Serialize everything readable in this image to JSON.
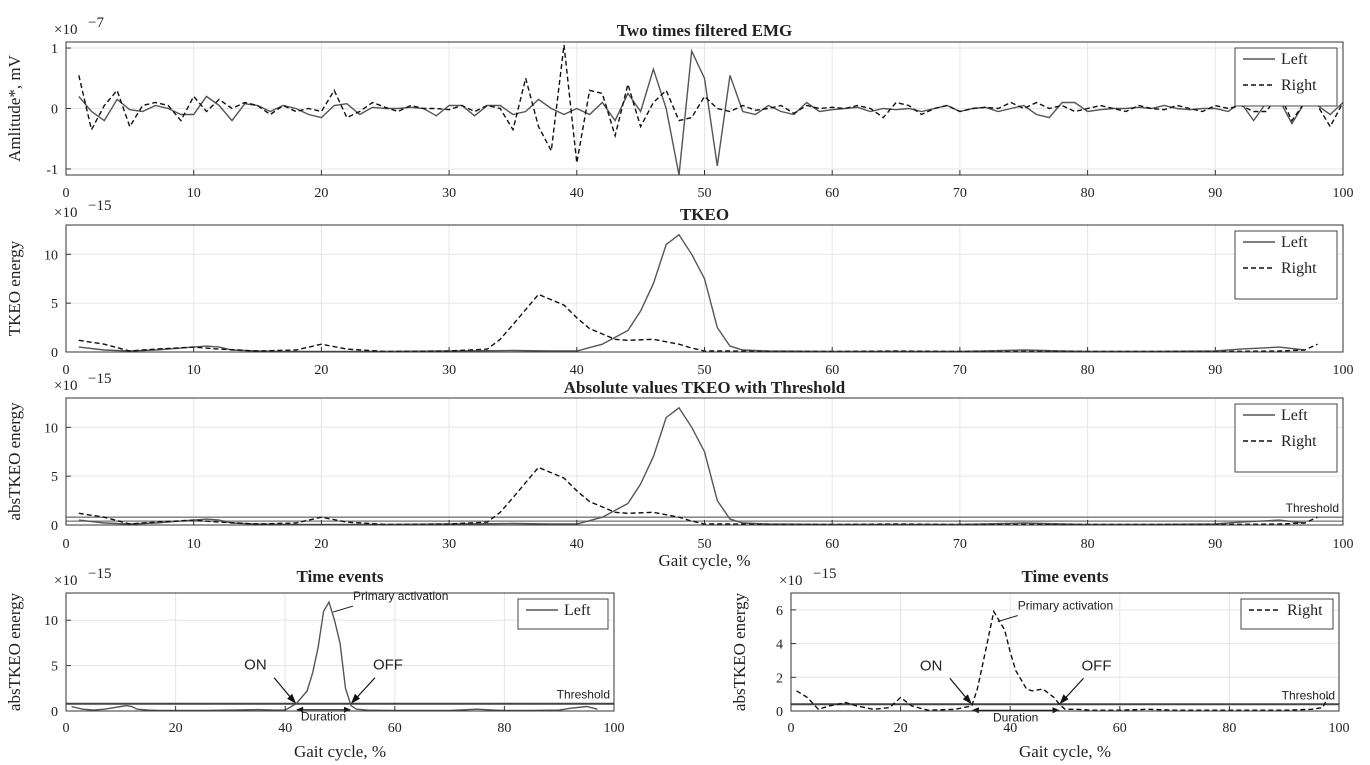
{
  "chart_data": [
    {
      "type": "line",
      "title": "Two times filtered EMG",
      "ylabel": "Amlitude*, mV",
      "xlabel": "",
      "multiplier": "×10",
      "exponent": "−7",
      "xlim": [
        0,
        100
      ],
      "ylim": [
        -1.1,
        1.1
      ],
      "xticks": [
        0,
        10,
        20,
        30,
        40,
        50,
        60,
        70,
        80,
        90,
        100
      ],
      "yticks": [
        -1,
        0,
        1
      ],
      "grid": true,
      "legend_position": "top-right",
      "x": [
        1,
        2,
        3,
        4,
        5,
        6,
        7,
        8,
        9,
        10,
        11,
        12,
        13,
        14,
        15,
        16,
        17,
        18,
        19,
        20,
        21,
        22,
        23,
        24,
        25,
        26,
        27,
        28,
        29,
        30,
        31,
        32,
        33,
        34,
        35,
        36,
        37,
        38,
        39,
        40,
        41,
        42,
        43,
        44,
        45,
        46,
        47,
        48,
        49,
        50,
        51,
        52,
        53,
        54,
        55,
        56,
        57,
        58,
        59,
        60,
        61,
        62,
        63,
        64,
        65,
        66,
        67,
        68,
        69,
        70,
        71,
        72,
        73,
        74,
        75,
        76,
        77,
        78,
        79,
        80,
        81,
        82,
        83,
        84,
        85,
        86,
        87,
        88,
        89,
        90,
        91,
        92,
        93,
        94,
        95,
        96,
        97,
        98,
        99,
        100
      ],
      "series": [
        {
          "name": "Left",
          "style": "solid",
          "values": [
            0.2,
            -0.05,
            -0.2,
            0.15,
            -0.02,
            -0.05,
            0.05,
            0.0,
            -0.1,
            -0.1,
            0.2,
            0.05,
            -0.2,
            0.08,
            0.05,
            -0.05,
            0.05,
            0.0,
            -0.1,
            -0.15,
            0.05,
            0.08,
            -0.1,
            0.02,
            0.0,
            0.0,
            0.02,
            0.0,
            -0.12,
            0.05,
            0.05,
            -0.12,
            0.05,
            0.05,
            -0.1,
            -0.05,
            0.15,
            0.0,
            -0.1,
            0.0,
            -0.1,
            0.1,
            -0.2,
            0.25,
            -0.05,
            0.65,
            0.0,
            -1.1,
            0.95,
            0.5,
            -0.95,
            0.55,
            -0.05,
            -0.1,
            0.05,
            -0.05,
            -0.1,
            0.1,
            -0.05,
            -0.02,
            0.0,
            0.02,
            -0.05,
            0.0,
            -0.02,
            0.0,
            -0.05,
            0.0,
            0.05,
            -0.05,
            0.0,
            0.02,
            -0.05,
            0.0,
            0.05,
            -0.1,
            -0.15,
            0.1,
            0.1,
            -0.05,
            -0.02,
            0.0,
            0.0,
            0.02,
            0.0,
            0.05,
            0.0,
            -0.02,
            0.0,
            0.0,
            -0.05,
            0.1,
            -0.2,
            0.1,
            0.15,
            -0.25,
            0.1,
            0.05,
            -0.1,
            0.1
          ]
        },
        {
          "name": "Right",
          "style": "dashed",
          "values": [
            0.55,
            -0.35,
            0.05,
            0.3,
            -0.3,
            0.05,
            0.1,
            0.05,
            -0.2,
            0.2,
            -0.05,
            0.15,
            0.0,
            0.1,
            0.05,
            -0.1,
            0.05,
            -0.05,
            0.0,
            -0.05,
            0.3,
            -0.15,
            -0.05,
            0.1,
            0.02,
            -0.05,
            0.05,
            0.0,
            0.0,
            -0.02,
            0.05,
            -0.05,
            0.05,
            0.0,
            -0.35,
            0.5,
            -0.3,
            -0.7,
            1.05,
            -0.9,
            0.3,
            0.25,
            -0.45,
            0.4,
            -0.3,
            0.1,
            0.3,
            -0.2,
            -0.15,
            0.2,
            0.0,
            -0.05,
            0.05,
            -0.03,
            0.0,
            0.05,
            -0.08,
            0.05,
            0.0,
            0.02,
            0.0,
            0.05,
            0.0,
            -0.15,
            0.1,
            0.05,
            -0.1,
            0.0,
            0.05,
            -0.05,
            0.0,
            0.02,
            0.0,
            0.1,
            0.0,
            0.1,
            0.0,
            0.05,
            -0.05,
            0.0,
            0.05,
            0.0,
            -0.05,
            0.05,
            0.0,
            -0.02,
            0.05,
            0.0,
            -0.05,
            0.05,
            0.0,
            0.05,
            -0.05,
            -0.05,
            0.25,
            -0.2,
            0.1,
            0.05,
            -0.3,
            0.1
          ]
        }
      ]
    },
    {
      "type": "line",
      "title": "TKEO",
      "ylabel": "TKEO energy",
      "xlabel": "",
      "multiplier": "×10",
      "exponent": "−15",
      "xlim": [
        0,
        100
      ],
      "ylim": [
        0,
        13
      ],
      "xticks": [
        0,
        10,
        20,
        30,
        40,
        50,
        60,
        70,
        80,
        90,
        100
      ],
      "yticks": [
        0,
        5,
        10
      ],
      "grid": true,
      "legend_position": "top-right",
      "series": [
        {
          "name": "Left",
          "style": "solid",
          "x": [
            1,
            3,
            5,
            7,
            9,
            10,
            11,
            12,
            13,
            15,
            17,
            20,
            25,
            30,
            35,
            38,
            40,
            42,
            44,
            45,
            46,
            47,
            48,
            49,
            50,
            51,
            52,
            53,
            55,
            60,
            70,
            75,
            78,
            80,
            85,
            90,
            92,
            95,
            97
          ],
          "values": [
            0.5,
            0.2,
            0.1,
            0.2,
            0.4,
            0.5,
            0.6,
            0.5,
            0.2,
            0.1,
            0.05,
            0.05,
            0.05,
            0.1,
            0.15,
            0.1,
            0.1,
            0.8,
            2.2,
            4.2,
            7.0,
            11.0,
            12.0,
            10.0,
            7.5,
            2.5,
            0.6,
            0.2,
            0.1,
            0.05,
            0.05,
            0.2,
            0.1,
            0.05,
            0.05,
            0.1,
            0.3,
            0.5,
            0.2
          ]
        },
        {
          "name": "Right",
          "style": "dashed",
          "x": [
            1,
            3,
            5,
            7,
            10,
            12,
            15,
            18,
            20,
            22,
            25,
            30,
            33,
            34,
            35,
            37,
            39,
            40,
            41,
            43,
            44,
            46,
            48,
            49,
            50,
            52,
            55,
            60,
            65,
            70,
            80,
            90,
            95,
            97,
            98
          ],
          "values": [
            1.2,
            0.8,
            0.1,
            0.3,
            0.5,
            0.3,
            0.1,
            0.2,
            0.8,
            0.3,
            0.05,
            0.1,
            0.3,
            1.3,
            2.8,
            5.9,
            4.8,
            3.5,
            2.4,
            1.3,
            1.2,
            1.3,
            0.8,
            0.4,
            0.1,
            0.1,
            0.05,
            0.05,
            0.1,
            0.05,
            0.05,
            0.05,
            0.1,
            0.2,
            0.8
          ]
        }
      ]
    },
    {
      "type": "line",
      "title": "Absolute values TKEO with Threshold",
      "ylabel": "absTKEO energy",
      "xlabel": "Gait cycle, %",
      "multiplier": "×10",
      "exponent": "−15",
      "xlim": [
        0,
        100
      ],
      "ylim": [
        0,
        13
      ],
      "xticks": [
        0,
        10,
        20,
        30,
        40,
        50,
        60,
        70,
        80,
        90,
        100
      ],
      "yticks": [
        0,
        5,
        10
      ],
      "grid": true,
      "legend_position": "top-right",
      "thresholds": [
        0.8,
        0.4
      ],
      "threshold_label": "Threshold",
      "series": [
        {
          "name": "Left",
          "style": "solid",
          "x": [
            1,
            3,
            5,
            7,
            9,
            10,
            11,
            12,
            13,
            15,
            17,
            20,
            25,
            30,
            35,
            38,
            40,
            42,
            44,
            45,
            46,
            47,
            48,
            49,
            50,
            51,
            52,
            53,
            55,
            60,
            70,
            75,
            78,
            80,
            85,
            90,
            92,
            95,
            97
          ],
          "values": [
            0.5,
            0.2,
            0.1,
            0.2,
            0.4,
            0.5,
            0.6,
            0.5,
            0.2,
            0.1,
            0.05,
            0.05,
            0.05,
            0.1,
            0.15,
            0.1,
            0.1,
            0.8,
            2.2,
            4.2,
            7.0,
            11.0,
            12.0,
            10.0,
            7.5,
            2.5,
            0.6,
            0.2,
            0.1,
            0.05,
            0.05,
            0.2,
            0.1,
            0.05,
            0.05,
            0.1,
            0.3,
            0.5,
            0.2
          ]
        },
        {
          "name": "Right",
          "style": "dashed",
          "x": [
            1,
            3,
            5,
            7,
            10,
            12,
            15,
            18,
            20,
            22,
            25,
            30,
            33,
            34,
            35,
            37,
            39,
            40,
            41,
            43,
            44,
            46,
            48,
            49,
            50,
            52,
            55,
            60,
            65,
            70,
            80,
            90,
            95,
            97,
            98
          ],
          "values": [
            1.2,
            0.8,
            0.1,
            0.3,
            0.5,
            0.3,
            0.1,
            0.2,
            0.8,
            0.3,
            0.05,
            0.1,
            0.3,
            1.3,
            2.8,
            5.9,
            4.8,
            3.5,
            2.4,
            1.3,
            1.2,
            1.3,
            0.8,
            0.4,
            0.1,
            0.1,
            0.05,
            0.05,
            0.1,
            0.05,
            0.05,
            0.05,
            0.1,
            0.2,
            0.8
          ]
        }
      ]
    },
    {
      "type": "line",
      "title": "Time events",
      "ylabel": "absTKEO energy",
      "xlabel": "Gait cycle, %",
      "multiplier": "×10",
      "exponent": "−15",
      "xlim": [
        0,
        100
      ],
      "ylim": [
        0,
        13
      ],
      "xticks": [
        0,
        20,
        40,
        60,
        80,
        100
      ],
      "yticks": [
        0,
        5,
        10
      ],
      "grid": true,
      "legend_position": "top-right",
      "thresholds": [
        0.8
      ],
      "threshold_label": "Threshold",
      "annotations": {
        "peak": "Primary activation",
        "on": "ON",
        "off": "OFF",
        "duration": "Duration",
        "on_x": 42,
        "off_x": 52,
        "peak_x": 48,
        "peak_y": 12.0
      },
      "series": [
        {
          "name": "Left",
          "style": "solid",
          "x": [
            1,
            3,
            5,
            7,
            9,
            10,
            11,
            12,
            13,
            15,
            17,
            20,
            25,
            30,
            35,
            38,
            40,
            42,
            44,
            45,
            46,
            47,
            48,
            49,
            50,
            51,
            52,
            53,
            55,
            60,
            70,
            75,
            78,
            80,
            85,
            90,
            92,
            95,
            97
          ],
          "values": [
            0.5,
            0.2,
            0.1,
            0.2,
            0.4,
            0.5,
            0.6,
            0.5,
            0.2,
            0.1,
            0.05,
            0.05,
            0.05,
            0.1,
            0.15,
            0.1,
            0.1,
            0.8,
            2.2,
            4.2,
            7.0,
            11.0,
            12.0,
            10.0,
            7.5,
            2.5,
            0.6,
            0.2,
            0.1,
            0.05,
            0.05,
            0.2,
            0.1,
            0.05,
            0.05,
            0.1,
            0.3,
            0.5,
            0.2
          ]
        }
      ]
    },
    {
      "type": "line",
      "title": "Time events",
      "ylabel": "absTKEO energy",
      "xlabel": "Gait cycle, %",
      "multiplier": "×10",
      "exponent": "−15",
      "xlim": [
        0,
        100
      ],
      "ylim": [
        0,
        7
      ],
      "xticks": [
        0,
        20,
        40,
        60,
        80,
        100
      ],
      "yticks": [
        0,
        2,
        4,
        6
      ],
      "grid": true,
      "legend_position": "top-right",
      "thresholds": [
        0.4
      ],
      "threshold_label": "Threshold",
      "annotations": {
        "peak": "Primary activation",
        "on": "ON",
        "off": "OFF",
        "duration": "Duration",
        "on_x": 33,
        "off_x": 49,
        "peak_x": 37,
        "peak_y": 5.9
      },
      "series": [
        {
          "name": "Right",
          "style": "dashed",
          "x": [
            1,
            3,
            5,
            7,
            10,
            12,
            15,
            18,
            20,
            22,
            25,
            30,
            33,
            34,
            35,
            37,
            39,
            40,
            41,
            43,
            44,
            46,
            48,
            49,
            50,
            52,
            55,
            60,
            65,
            70,
            80,
            90,
            95,
            97,
            98
          ],
          "values": [
            1.2,
            0.8,
            0.1,
            0.3,
            0.5,
            0.3,
            0.1,
            0.2,
            0.8,
            0.3,
            0.05,
            0.1,
            0.3,
            1.3,
            2.8,
            5.9,
            4.8,
            3.5,
            2.4,
            1.3,
            1.2,
            1.3,
            0.8,
            0.4,
            0.1,
            0.1,
            0.05,
            0.05,
            0.1,
            0.05,
            0.05,
            0.05,
            0.1,
            0.2,
            0.8
          ]
        }
      ]
    }
  ]
}
